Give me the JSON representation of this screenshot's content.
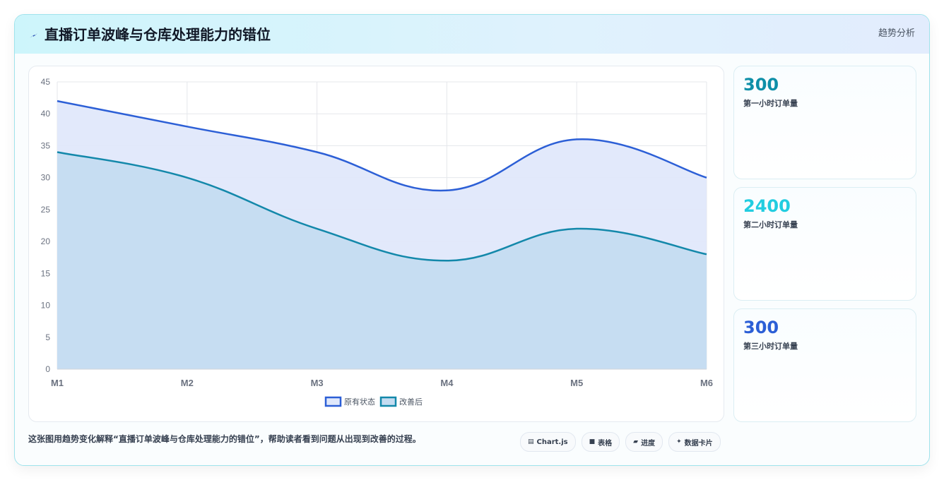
{
  "header": {
    "title": "直播订单波峰与仓库处理能力的错位",
    "tag": "趋势分析",
    "icon": "lightning-icon"
  },
  "stats": [
    {
      "value": "300",
      "label": "第一小时订单量",
      "color": "#0e8fa8"
    },
    {
      "value": "2400",
      "label": "第二小时订单量",
      "color": "#22cde0"
    },
    {
      "value": "300",
      "label": "第三小时订单量",
      "color": "#2c5fd6"
    }
  ],
  "caption": "这张图用趋势变化解释“直播订单波峰与仓库处理能力的错位”，帮助读者看到问题从出现到改善的过程。",
  "chips": [
    {
      "icon": "chart-icon",
      "glyph": "▤",
      "label": "Chart.js"
    },
    {
      "icon": "table-icon",
      "glyph": "■",
      "label": "表格"
    },
    {
      "icon": "progress-icon",
      "glyph": "▰",
      "label": "进度"
    },
    {
      "icon": "sparkle-icon",
      "glyph": "✦",
      "label": "数据卡片"
    }
  ],
  "chart_data": {
    "type": "area",
    "categories": [
      "M1",
      "M2",
      "M3",
      "M4",
      "M5",
      "M6"
    ],
    "series": [
      {
        "name": "原有状态",
        "values": [
          42,
          38,
          34,
          28,
          36,
          30
        ],
        "color": "#2c5fd6",
        "fill": "#e0e8fb"
      },
      {
        "name": "改善后",
        "values": [
          34,
          30,
          22,
          17,
          22,
          18
        ],
        "color": "#1388aa",
        "fill": "#c4dcf1"
      }
    ],
    "ylim": [
      0,
      45
    ],
    "yticks": [
      "0",
      "5",
      "10",
      "15",
      "20",
      "25",
      "30",
      "35",
      "40",
      "45"
    ],
    "grid": true,
    "legend": "bottom"
  }
}
